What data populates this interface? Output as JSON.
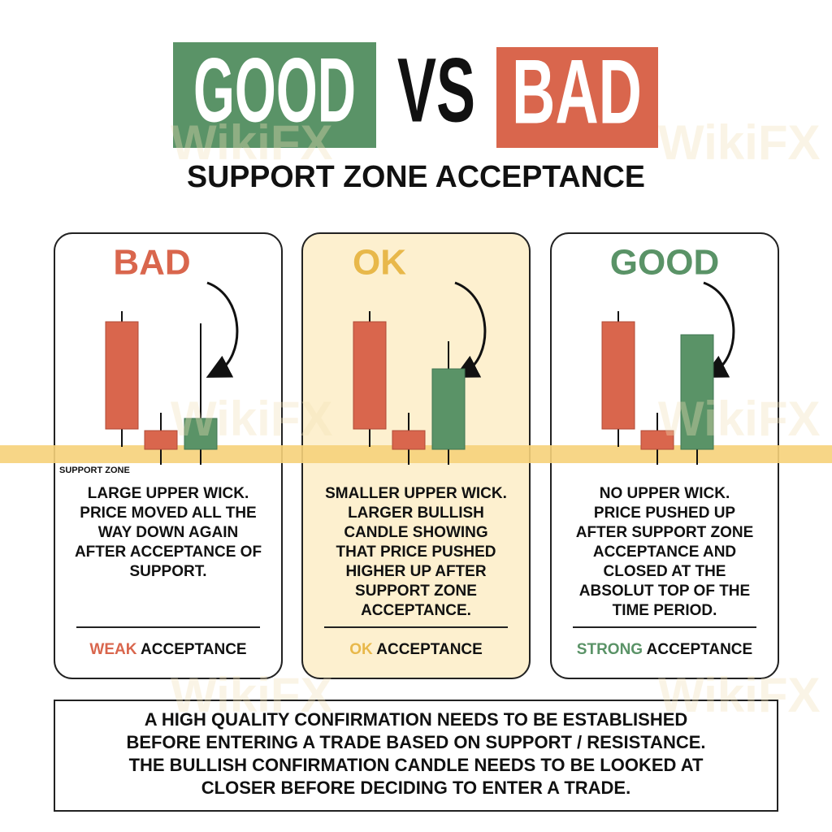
{
  "header": {
    "good": "GOOD",
    "vs": "VS",
    "bad": "BAD",
    "subtitle": "SUPPORT ZONE ACCEPTANCE"
  },
  "watermark": "WikiFX",
  "support_zone_label": "SUPPORT ZONE",
  "panels": [
    {
      "rating": "BAD",
      "description": [
        "LARGE UPPER WICK.",
        "PRICE MOVED ALL THE",
        "WAY DOWN AGAIN",
        "AFTER ACCEPTANCE OF",
        "SUPPORT."
      ],
      "strength": "WEAK",
      "acceptance": "ACCEPTANCE"
    },
    {
      "rating": "OK",
      "description": [
        "SMALLER UPPER WICK.",
        "LARGER BULLISH",
        "CANDLE SHOWING",
        "THAT PRICE PUSHED",
        "HIGHER UP AFTER",
        "SUPPORT ZONE",
        "ACCEPTANCE."
      ],
      "strength": "OK",
      "acceptance": "ACCEPTANCE"
    },
    {
      "rating": "GOOD",
      "description": [
        "NO UPPER WICK.",
        "PRICE PUSHED UP",
        "AFTER SUPPORT ZONE",
        "ACCEPTANCE AND",
        "CLOSED AT THE",
        "ABSOLUT TOP OF THE",
        "TIME PERIOD."
      ],
      "strength": "STRONG",
      "acceptance": "ACCEPTANCE"
    }
  ],
  "note": [
    "A HIGH QUALITY CONFIRMATION NEEDS TO BE ESTABLISHED",
    "BEFORE ENTERING A TRADE BASED ON SUPPORT / RESISTANCE.",
    "THE BULLISH CONFIRMATION CANDLE NEEDS TO BE LOOKED AT",
    "CLOSER BEFORE DECIDING TO ENTER A TRADE."
  ]
}
